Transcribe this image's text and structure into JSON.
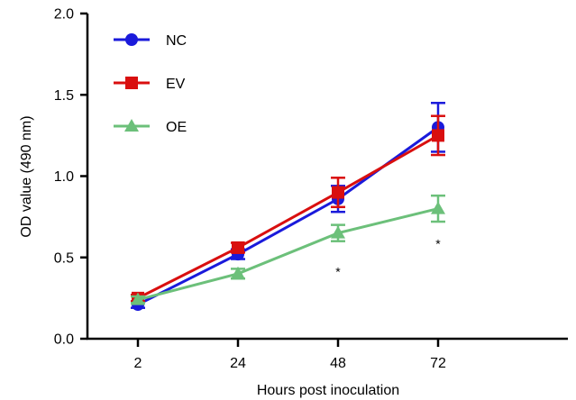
{
  "chart_data": {
    "type": "line",
    "xlabel": "Hours post inoculation",
    "ylabel": "OD value (490 nm)",
    "x": [
      "2",
      "24",
      "48",
      "72"
    ],
    "ylim": [
      0,
      2.0
    ],
    "yticks": [
      "0.0",
      "0.5",
      "1.0",
      "1.5",
      "2.0"
    ],
    "legend_position": "top-left",
    "grid": false,
    "series": [
      {
        "name": "NC",
        "color": "#1a1adb",
        "marker": "circle",
        "values": [
          0.21,
          0.52,
          0.86,
          1.3
        ],
        "errors": [
          0.02,
          0.03,
          0.08,
          0.15
        ]
      },
      {
        "name": "EV",
        "color": "#d90f0f",
        "marker": "square",
        "values": [
          0.25,
          0.56,
          0.9,
          1.25
        ],
        "errors": [
          0.02,
          0.03,
          0.09,
          0.12
        ]
      },
      {
        "name": "OE",
        "color": "#6cc07a",
        "marker": "triangle",
        "values": [
          0.24,
          0.4,
          0.65,
          0.8
        ],
        "errors": [
          0.02,
          0.03,
          0.05,
          0.08
        ]
      }
    ],
    "annotations": [
      {
        "x": "48",
        "y": 0.43,
        "text": "*"
      },
      {
        "x": "72",
        "y": 0.6,
        "text": "*"
      }
    ]
  }
}
